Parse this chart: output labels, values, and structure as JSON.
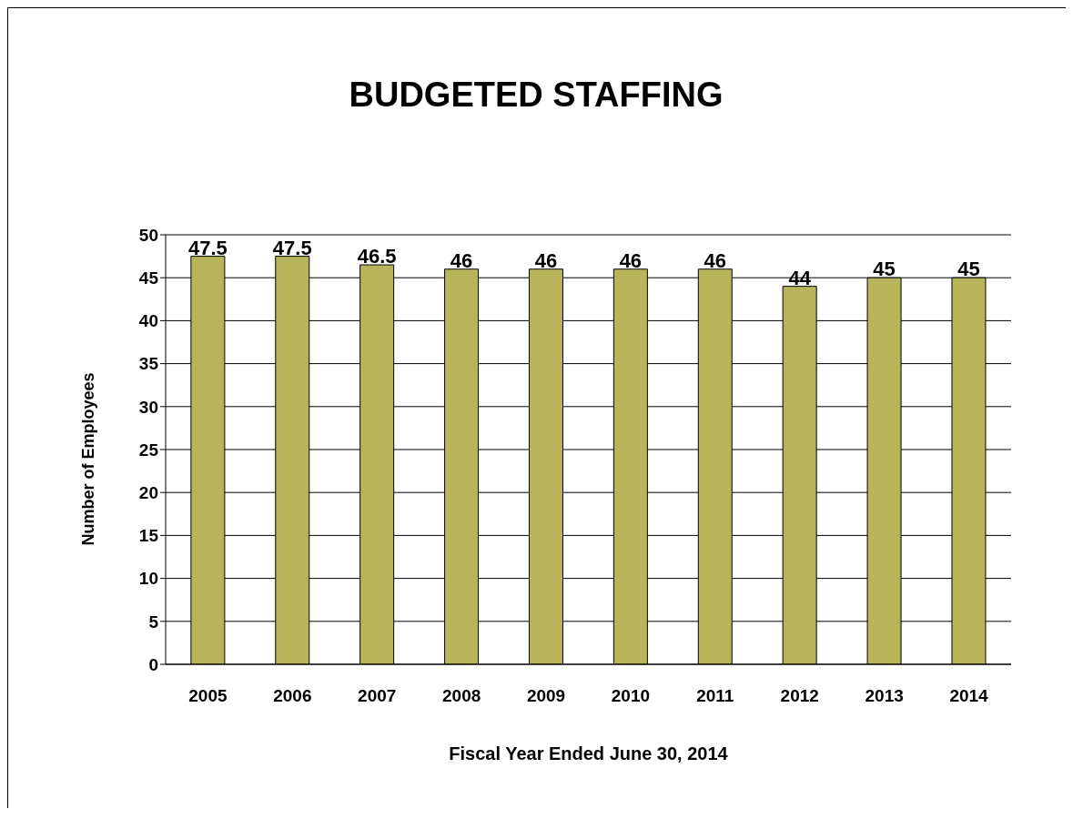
{
  "chart_data": {
    "type": "bar",
    "title": "BUDGETED STAFFING",
    "xlabel": "Fiscal Year Ended June 30, 2014",
    "ylabel": "Number of Employees",
    "categories": [
      "2005",
      "2006",
      "2007",
      "2008",
      "2009",
      "2010",
      "2011",
      "2012",
      "2013",
      "2014"
    ],
    "values": [
      47.5,
      47.5,
      46.5,
      46,
      46,
      46,
      46,
      44,
      45,
      45
    ],
    "color": "#b8b45a",
    "ylim": [
      0,
      50
    ],
    "yticks": [
      0,
      5,
      10,
      15,
      20,
      25,
      30,
      35,
      40,
      45,
      50
    ],
    "grid": "y",
    "data_labels": true
  }
}
